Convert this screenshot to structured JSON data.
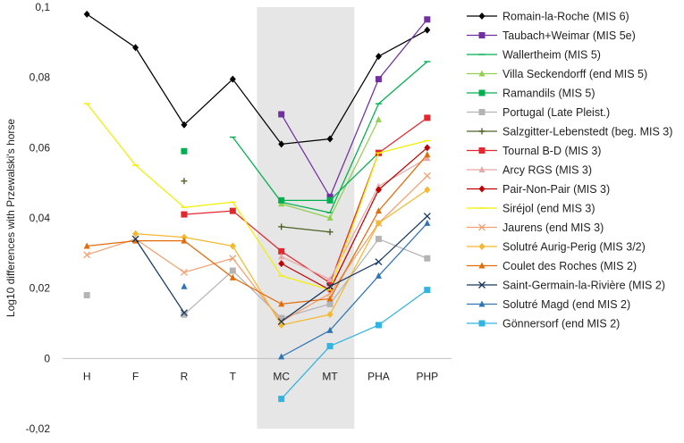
{
  "chart_data": {
    "type": "line",
    "title": "",
    "xlabel": "",
    "ylabel": "Log10 differences with Przewalski's horse",
    "categories": [
      "H",
      "F",
      "R",
      "T",
      "MC",
      "MT",
      "PHA",
      "PHP"
    ],
    "ylim": [
      -0.02,
      0.1
    ],
    "yticks": [
      -0.02,
      0,
      0.02,
      0.04,
      0.06,
      0.08,
      0.1
    ],
    "ytick_labels": [
      "-0,02",
      "0",
      "0,02",
      "0,04",
      "0,06",
      "0,08",
      "0,1"
    ],
    "highlight_band": [
      "MC",
      "MT"
    ],
    "highlight_color": "#e7e6e6",
    "legend_position": "right",
    "series": [
      {
        "name": "Romain-la-Roche (MIS 6)",
        "color": "#000000",
        "marker": "diamond",
        "values": [
          0.098,
          0.0885,
          0.0665,
          0.0795,
          0.061,
          0.0625,
          0.086,
          0.0935
        ]
      },
      {
        "name": "Taubach+Weimar (MIS 5e)",
        "color": "#7030a0",
        "marker": "square",
        "values": [
          null,
          null,
          null,
          null,
          0.0695,
          0.046,
          0.0795,
          0.0965
        ]
      },
      {
        "name": "Wallertheim (MIS 5)",
        "color": "#00b050",
        "marker": "dash",
        "values": [
          null,
          null,
          null,
          0.063,
          0.0445,
          0.0415,
          0.0725,
          0.0845
        ]
      },
      {
        "name": "Villa Seckendorff (end MIS 5)",
        "color": "#92d050",
        "marker": "triangle",
        "values": [
          null,
          null,
          null,
          null,
          0.044,
          0.04,
          0.068,
          null
        ]
      },
      {
        "name": "Ramandils (MIS 5)",
        "color": "#00b050",
        "marker": "square",
        "values": [
          null,
          null,
          0.059,
          null,
          0.045,
          0.045,
          0.0585,
          null
        ]
      },
      {
        "name": "Portugal (Late Pleist.)",
        "color": "#b4b4b4",
        "marker": "square",
        "values": [
          0.018,
          null,
          0.0125,
          0.025,
          0.0115,
          0.0155,
          0.034,
          0.0285
        ]
      },
      {
        "name": "Salzgitter-Lebenstedt (beg. MIS 3)",
        "color": "#4f6228",
        "marker": "plus",
        "values": [
          null,
          null,
          0.0505,
          null,
          0.0375,
          0.036,
          null,
          null
        ]
      },
      {
        "name": "Tournal B-D (MIS 3)",
        "color": "#e3272e",
        "marker": "square",
        "values": [
          null,
          null,
          0.041,
          0.042,
          0.0305,
          0.0215,
          0.0585,
          0.0685
        ]
      },
      {
        "name": "Arcy RGS (MIS 3)",
        "color": "#e6a8a8",
        "marker": "triangle",
        "values": [
          null,
          null,
          null,
          null,
          0.029,
          0.0225,
          0.049,
          0.057
        ]
      },
      {
        "name": "Pair-Non-Pair (MIS 3)",
        "color": "#c00000",
        "marker": "diamond",
        "values": [
          null,
          null,
          null,
          null,
          0.027,
          0.0195,
          0.048,
          0.06
        ]
      },
      {
        "name": "Siréjol (end MIS 3)",
        "color": "#f0f000",
        "marker": "dash",
        "values": [
          0.0725,
          0.055,
          0.043,
          0.0445,
          0.0235,
          0.0195,
          0.0585,
          0.062
        ]
      },
      {
        "name": "Jaurens (end MIS 3)",
        "color": "#f4a070",
        "marker": "x",
        "values": [
          0.0295,
          0.034,
          0.0245,
          0.0285,
          0.0105,
          0.0185,
          0.0385,
          0.052
        ]
      },
      {
        "name": "Solutré Aurig-Perig (MIS 3/2)",
        "color": "#f5b82e",
        "marker": "diamond",
        "values": [
          null,
          0.0355,
          0.0345,
          0.032,
          0.0095,
          0.0125,
          0.0385,
          0.048
        ]
      },
      {
        "name": "Coulet des Roches (MIS 2)",
        "color": "#e36c09",
        "marker": "triangle",
        "values": [
          0.032,
          0.0335,
          0.0335,
          0.023,
          0.0155,
          0.017,
          0.042,
          0.058
        ]
      },
      {
        "name": "Saint-Germain-la-Rivière (MIS 2)",
        "color": "#17375e",
        "marker": "x",
        "values": [
          null,
          0.034,
          0.013,
          null,
          0.0105,
          0.0205,
          0.0275,
          0.0405
        ]
      },
      {
        "name": "Solutré Magd (end MIS 2)",
        "color": "#2e75b6",
        "marker": "triangle",
        "values": [
          null,
          null,
          0.0205,
          null,
          0.0005,
          0.008,
          0.0235,
          0.0385
        ]
      },
      {
        "name": "Gönnersorf (end MIS 2)",
        "color": "#31b4e0",
        "marker": "square",
        "values": [
          null,
          null,
          null,
          null,
          -0.0115,
          0.0035,
          0.0095,
          0.0195
        ]
      }
    ]
  }
}
